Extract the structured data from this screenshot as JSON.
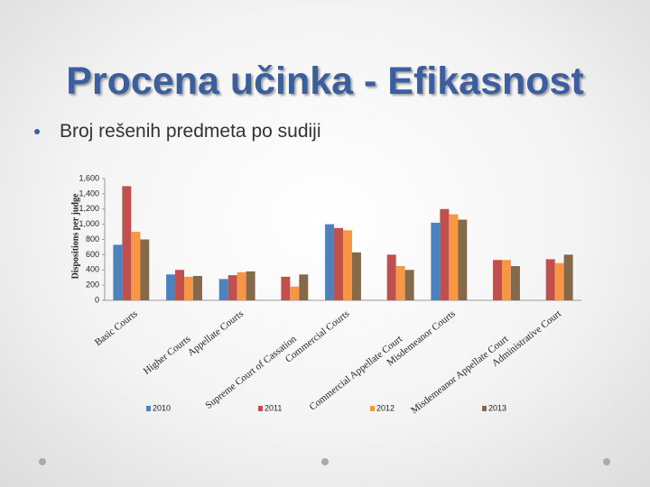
{
  "slide": {
    "title": "Procena učinka - Efikasnost",
    "bullet": "Broj rešenih predmeta po sudiji"
  },
  "chart_data": {
    "type": "bar",
    "y_label": "Dispositions per judge",
    "categories": [
      "Basic Courts",
      "Higher Courts",
      "Appellate Courts",
      "Supreme Court of Cassation",
      "Commercial Courts",
      "Commercial Appellate Court",
      "Misdemeanor Courts",
      "Misdemeanor Appellate Court",
      "Administrative Court"
    ],
    "series": [
      {
        "name": "2010",
        "color": "#4f81bd",
        "values": [
          730,
          340,
          280,
          null,
          1000,
          null,
          1020,
          null,
          null
        ]
      },
      {
        "name": "2011",
        "color": "#c0504d",
        "values": [
          1500,
          400,
          330,
          310,
          950,
          600,
          1200,
          530,
          540
        ]
      },
      {
        "name": "2012",
        "color": "#f79646",
        "values": [
          900,
          310,
          370,
          180,
          920,
          450,
          1130,
          530,
          490
        ]
      },
      {
        "name": "2013",
        "color": "#85694b",
        "values": [
          800,
          320,
          380,
          340,
          630,
          400,
          1060,
          450,
          600
        ]
      }
    ],
    "ylim": [
      0,
      1600
    ],
    "yticks": [
      0,
      200,
      400,
      600,
      800,
      {
        "value": 1000,
        "label": "1,000"
      },
      {
        "value": 1200,
        "label": "1,200"
      },
      {
        "value": 1400,
        "label": "1,400"
      },
      {
        "value": 1600,
        "label": "1,600"
      }
    ],
    "grid": false,
    "legend": "bottom"
  }
}
